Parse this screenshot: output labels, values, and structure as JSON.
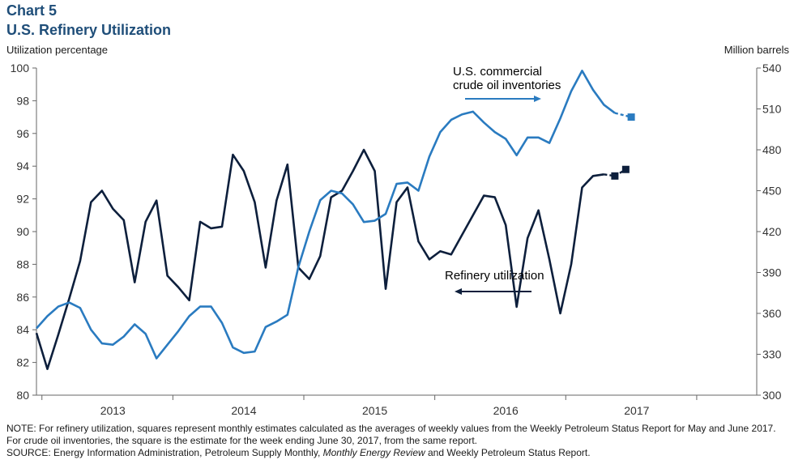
{
  "header": {
    "chart_number": "Chart 5",
    "title": "U.S. Refinery Utilization"
  },
  "notes": {
    "note": "NOTE: For refinery utilization, squares represent monthly estimates calculated as the averages of weekly values from the Weekly Petroleum Status Report for May and June 2017. For crude oil inventories, the square is the estimate for the week ending June 30, 2017, from the same report.",
    "source_prefix": "SOURCE: Energy Information Administration, Petroleum Supply Monthly, ",
    "source_italic": "Monthly Energy Review",
    "source_suffix": " and Weekly Petroleum Status Report."
  },
  "colors": {
    "refinery": "#0d1f3c",
    "inventories": "#2a7bc0",
    "title": "#1f4e79"
  },
  "chart_data": {
    "type": "line",
    "title": "U.S. Refinery Utilization",
    "ylabel_left": "Utilization percentage",
    "ylabel_right": "Million barrels",
    "ylim_left": [
      80,
      100
    ],
    "ylim_right": [
      300,
      540
    ],
    "yticks_left": [
      "80",
      "82",
      "84",
      "86",
      "88",
      "90",
      "92",
      "94",
      "96",
      "98",
      "100"
    ],
    "yticks_right": [
      "300",
      "330",
      "360",
      "390",
      "420",
      "450",
      "480",
      "510",
      "540"
    ],
    "xticks": [
      "2013",
      "2014",
      "2015",
      "2016",
      "2017"
    ],
    "x_start": "2012-12",
    "grid": false,
    "annotations": {
      "inventories": [
        "U.S. commercial",
        "crude oil inventories"
      ],
      "refinery": "Refinery utilization"
    },
    "series": [
      {
        "name": "Refinery utilization",
        "axis": "left",
        "color": "#0d1f3c",
        "months": [
          "2012-12",
          "2013-01",
          "2013-02",
          "2013-03",
          "2013-04",
          "2013-05",
          "2013-06",
          "2013-07",
          "2013-08",
          "2013-09",
          "2013-10",
          "2013-11",
          "2013-12",
          "2014-01",
          "2014-02",
          "2014-03",
          "2014-04",
          "2014-05",
          "2014-06",
          "2014-07",
          "2014-08",
          "2014-09",
          "2014-10",
          "2014-11",
          "2014-12",
          "2015-01",
          "2015-02",
          "2015-03",
          "2015-04",
          "2015-05",
          "2015-06",
          "2015-07",
          "2015-08",
          "2015-09",
          "2015-10",
          "2015-11",
          "2015-12",
          "2016-01",
          "2016-02",
          "2016-03",
          "2016-04",
          "2016-05",
          "2016-06",
          "2016-07",
          "2016-08",
          "2016-09",
          "2016-10",
          "2016-11",
          "2016-12",
          "2017-01",
          "2017-02",
          "2017-03",
          "2017-04"
        ],
        "values": [
          83.8,
          81.6,
          83.7,
          85.9,
          88.2,
          91.8,
          92.5,
          91.4,
          90.7,
          86.9,
          90.6,
          91.9,
          87.3,
          86.6,
          85.8,
          90.6,
          90.2,
          90.3,
          94.7,
          93.7,
          91.8,
          87.8,
          91.9,
          94.1,
          87.8,
          87.1,
          88.5,
          92.1,
          92.5,
          93.7,
          95.0,
          93.7,
          86.5,
          91.8,
          92.7,
          89.4,
          88.3,
          88.8,
          88.6,
          89.8,
          91.0,
          92.2,
          92.1,
          90.4,
          85.4,
          89.6,
          91.3,
          88.3,
          85.0,
          88.0,
          92.7,
          93.4,
          93.5
        ],
        "estimates": [
          {
            "month": "2017-05",
            "value": 93.4
          },
          {
            "month": "2017-06",
            "value": 93.8
          }
        ]
      },
      {
        "name": "U.S. commercial crude oil inventories",
        "axis": "right",
        "color": "#2a7bc0",
        "months": [
          "2012-12",
          "2013-01",
          "2013-02",
          "2013-03",
          "2013-04",
          "2013-05",
          "2013-06",
          "2013-07",
          "2013-08",
          "2013-09",
          "2013-10",
          "2013-11",
          "2013-12",
          "2014-01",
          "2014-02",
          "2014-03",
          "2014-04",
          "2014-05",
          "2014-06",
          "2014-07",
          "2014-08",
          "2014-09",
          "2014-10",
          "2014-11",
          "2014-12",
          "2015-01",
          "2015-02",
          "2015-03",
          "2015-04",
          "2015-05",
          "2015-06",
          "2015-07",
          "2015-08",
          "2015-09",
          "2015-10",
          "2015-11",
          "2015-12",
          "2016-01",
          "2016-02",
          "2016-03",
          "2016-04",
          "2016-05",
          "2016-06",
          "2016-07",
          "2016-08",
          "2016-09",
          "2016-10",
          "2016-11",
          "2016-12",
          "2017-01",
          "2017-02",
          "2017-03",
          "2017-04",
          "2017-05"
        ],
        "values": [
          349,
          358,
          365,
          368,
          364,
          348,
          338,
          337,
          343,
          352,
          345,
          327,
          337,
          347,
          358,
          365,
          365,
          353,
          335,
          331,
          332,
          350,
          354,
          359,
          394,
          420,
          443,
          450,
          448,
          440,
          427,
          428,
          433,
          455,
          456,
          450,
          475,
          493,
          502,
          506,
          508,
          500,
          493,
          488,
          476,
          489,
          489,
          485,
          503,
          523,
          538,
          524,
          513,
          507
        ],
        "estimates": [
          {
            "date": "2017-06-30",
            "value": 504
          }
        ]
      }
    ]
  }
}
